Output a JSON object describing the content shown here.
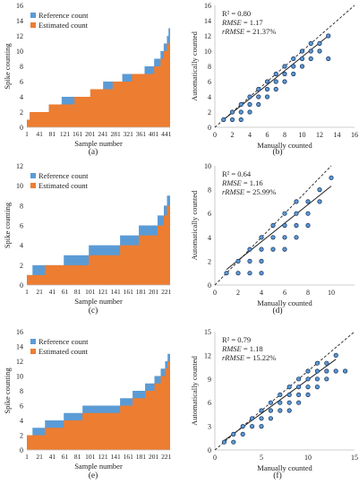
{
  "colors": {
    "reference": "#5b9bd5",
    "estimated": "#ed7d31",
    "point_fill": "#5b9bd5",
    "point_stroke": "#1f3864",
    "fit_line": "#222222",
    "identity_line": "#222222",
    "axis": "#bfbfbf"
  },
  "chart_data": [
    {
      "panel": "a",
      "caption": "(a)",
      "type": "area",
      "xlabel": "Sample number",
      "ylabel": "Spike counting",
      "xticks": [
        "1",
        "41",
        "81",
        "121",
        "161",
        "201",
        "241",
        "281",
        "321",
        "361",
        "401",
        "441"
      ],
      "yticks": [
        0,
        2,
        4,
        6,
        8,
        10,
        12,
        14,
        16
      ],
      "ylim": [
        0,
        16
      ],
      "n": 450,
      "legend": [
        "Reference count",
        "Estimated count"
      ],
      "legend_position": "top-left",
      "x": [
        1,
        10,
        40,
        70,
        110,
        150,
        200,
        240,
        270,
        300,
        330,
        370,
        400,
        420,
        430,
        440,
        445,
        447,
        450
      ],
      "estimated": [
        1,
        2,
        2,
        3,
        3,
        4,
        5,
        5,
        6,
        6,
        7,
        7,
        8,
        9,
        10,
        11,
        11,
        12,
        12
      ],
      "reference": [
        1,
        2,
        2,
        3,
        4,
        4,
        5,
        6,
        6,
        7,
        7,
        8,
        9,
        10,
        11,
        12,
        13,
        13,
        14
      ]
    },
    {
      "panel": "b",
      "caption": "(b)",
      "type": "scatter",
      "xlabel": "Manually counted",
      "ylabel": "Automatically counted",
      "xlim": [
        0,
        16
      ],
      "ylim": [
        0,
        16
      ],
      "xticks": [
        0,
        2,
        4,
        6,
        8,
        10,
        12,
        14,
        16
      ],
      "yticks": [
        0,
        2,
        4,
        6,
        8,
        10,
        12,
        14,
        16
      ],
      "stats": {
        "r2": "R² = 0.80",
        "rmse_label": "RMSE",
        "rmse": " = 1.17",
        "rrmse_label": "rRMSE",
        "rrmse": " = 21.37%"
      },
      "fit": [
        [
          1,
          1.0
        ],
        [
          13,
          12.0
        ]
      ],
      "points": [
        [
          1,
          1
        ],
        [
          2,
          1
        ],
        [
          2,
          2
        ],
        [
          3,
          1
        ],
        [
          3,
          2
        ],
        [
          3,
          3
        ],
        [
          4,
          2
        ],
        [
          4,
          3
        ],
        [
          4,
          4
        ],
        [
          5,
          3
        ],
        [
          5,
          4
        ],
        [
          5,
          5
        ],
        [
          6,
          4
        ],
        [
          6,
          5
        ],
        [
          6,
          6
        ],
        [
          7,
          5
        ],
        [
          7,
          6
        ],
        [
          7,
          7
        ],
        [
          8,
          6
        ],
        [
          8,
          7
        ],
        [
          8,
          8
        ],
        [
          9,
          7
        ],
        [
          9,
          8
        ],
        [
          9,
          9
        ],
        [
          10,
          8
        ],
        [
          10,
          9
        ],
        [
          10,
          10
        ],
        [
          11,
          9
        ],
        [
          11,
          10
        ],
        [
          11,
          11
        ],
        [
          12,
          10
        ],
        [
          12,
          11
        ],
        [
          13,
          9
        ],
        [
          13,
          12
        ]
      ]
    },
    {
      "panel": "c",
      "caption": "(c)",
      "type": "area",
      "xlabel": "Sample number",
      "ylabel": "Spike counting",
      "xticks": [
        "1",
        "21",
        "41",
        "61",
        "81",
        "101",
        "121",
        "141",
        "161",
        "181",
        "201",
        "221"
      ],
      "yticks": [
        0,
        2,
        4,
        6,
        8,
        10,
        12
      ],
      "ylim": [
        0,
        12
      ],
      "n": 230,
      "legend": [
        "Reference count",
        "Estimated count"
      ],
      "legend_position": "top-left",
      "x": [
        1,
        10,
        30,
        60,
        100,
        150,
        180,
        200,
        210,
        220,
        225,
        228,
        230
      ],
      "estimated": [
        1,
        1,
        2,
        2,
        3,
        4,
        5,
        5,
        6,
        7,
        8,
        8,
        9
      ],
      "reference": [
        1,
        2,
        2,
        3,
        4,
        5,
        6,
        6,
        7,
        8,
        9,
        9,
        10
      ]
    },
    {
      "panel": "d",
      "caption": "(d)",
      "type": "scatter",
      "xlabel": "Manually counted",
      "ylabel": "Automatically counted",
      "xlim": [
        0,
        12
      ],
      "ylim": [
        0,
        10
      ],
      "xticks": [
        0,
        2,
        4,
        6,
        8,
        10
      ],
      "yticks": [
        0,
        2,
        4,
        6,
        8,
        10
      ],
      "stats": {
        "r2": "R² = 0.64",
        "rmse_label": "RMSE",
        "rmse": " = 1.16",
        "rrmse_label": "rRMSE",
        "rrmse": " = 25.99%"
      },
      "fit": [
        [
          1,
          1.3
        ],
        [
          10,
          8.3
        ]
      ],
      "points": [
        [
          1,
          1
        ],
        [
          2,
          2
        ],
        [
          2,
          1
        ],
        [
          3,
          1
        ],
        [
          3,
          2
        ],
        [
          3,
          3
        ],
        [
          4,
          1
        ],
        [
          4,
          2
        ],
        [
          4,
          3
        ],
        [
          4,
          4
        ],
        [
          5,
          3
        ],
        [
          5,
          4
        ],
        [
          5,
          5
        ],
        [
          6,
          3
        ],
        [
          6,
          4
        ],
        [
          6,
          5
        ],
        [
          6,
          6
        ],
        [
          7,
          4
        ],
        [
          7,
          5
        ],
        [
          7,
          6
        ],
        [
          7,
          7
        ],
        [
          8,
          5
        ],
        [
          8,
          6
        ],
        [
          8,
          7
        ],
        [
          9,
          7
        ],
        [
          9,
          8
        ],
        [
          10,
          9
        ]
      ]
    },
    {
      "panel": "e",
      "caption": "(e)",
      "type": "area",
      "xlabel": "Sample number",
      "ylabel": "Spike counting",
      "xticks": [
        "1",
        "21",
        "41",
        "61",
        "81",
        "101",
        "121",
        "141",
        "161",
        "181",
        "201",
        "221"
      ],
      "yticks": [
        0,
        2,
        4,
        6,
        8,
        10,
        12,
        14,
        16
      ],
      "ylim": [
        0,
        16
      ],
      "n": 230,
      "legend": [
        "Reference count",
        "Estimated count"
      ],
      "legend_position": "top-left",
      "x": [
        1,
        10,
        30,
        60,
        90,
        120,
        150,
        170,
        190,
        205,
        215,
        222,
        226,
        230
      ],
      "estimated": [
        2,
        2,
        3,
        4,
        5,
        5,
        6,
        7,
        8,
        9,
        10,
        11,
        12,
        12
      ],
      "reference": [
        2,
        3,
        4,
        5,
        6,
        6,
        7,
        8,
        9,
        10,
        11,
        12,
        13,
        14
      ]
    },
    {
      "panel": "f",
      "caption": "(f)",
      "type": "scatter",
      "xlabel": "Manually counted",
      "ylabel": "Automatically counted",
      "xlim": [
        0,
        15
      ],
      "ylim": [
        0,
        15
      ],
      "xticks": [
        0,
        5,
        10,
        15
      ],
      "yticks": [
        0,
        3,
        6,
        9,
        12,
        15
      ],
      "stats": {
        "r2": "R² = 0.79",
        "rmse_label": "RMSE",
        "rmse": " = 1.18",
        "rrmse_label": "rRMSE",
        "rrmse": " = 15.22%"
      },
      "fit": [
        [
          1,
          1.2
        ],
        [
          13,
          11.5
        ]
      ],
      "points": [
        [
          1,
          1
        ],
        [
          2,
          1
        ],
        [
          2,
          2
        ],
        [
          3,
          2
        ],
        [
          3,
          3
        ],
        [
          4,
          3
        ],
        [
          4,
          4
        ],
        [
          5,
          3
        ],
        [
          5,
          4
        ],
        [
          5,
          5
        ],
        [
          6,
          4
        ],
        [
          6,
          5
        ],
        [
          6,
          6
        ],
        [
          7,
          5
        ],
        [
          7,
          6
        ],
        [
          7,
          7
        ],
        [
          8,
          5
        ],
        [
          8,
          6
        ],
        [
          8,
          7
        ],
        [
          8,
          8
        ],
        [
          9,
          6
        ],
        [
          9,
          7
        ],
        [
          9,
          8
        ],
        [
          9,
          9
        ],
        [
          10,
          7
        ],
        [
          10,
          8
        ],
        [
          10,
          9
        ],
        [
          10,
          10
        ],
        [
          11,
          8
        ],
        [
          11,
          9
        ],
        [
          11,
          10
        ],
        [
          11,
          11
        ],
        [
          12,
          9
        ],
        [
          12,
          10
        ],
        [
          12,
          11
        ],
        [
          13,
          10
        ],
        [
          13,
          12
        ],
        [
          14,
          10
        ]
      ]
    }
  ]
}
